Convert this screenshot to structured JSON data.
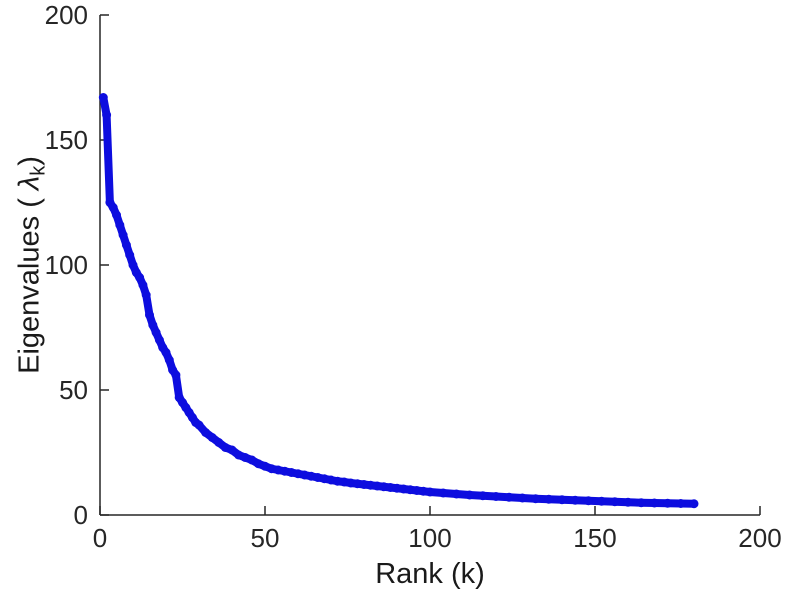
{
  "chart_data": {
    "type": "scatter",
    "title": "",
    "xlabel": "Rank (k)",
    "ylabel_parts": {
      "prefix": "Eigenvalues ( ",
      "lambda": "λ",
      "subscript": "k",
      "suffix": ")"
    },
    "xlim": [
      0,
      200
    ],
    "ylim": [
      0,
      200
    ],
    "xticks": [
      0,
      50,
      100,
      150,
      200
    ],
    "yticks": [
      0,
      50,
      100,
      150,
      200
    ],
    "grid": false,
    "legend": "none",
    "marker": "filled-circle",
    "colors": {
      "series": "#0d0ddf",
      "axis": "#262626",
      "background": "#ffffff"
    },
    "series": [
      {
        "name": "eigenvalues",
        "x": [
          1,
          2,
          3,
          4,
          5,
          6,
          7,
          8,
          9,
          10,
          11,
          12,
          13,
          14,
          15,
          16,
          17,
          18,
          19,
          20,
          21,
          22,
          23,
          24,
          25,
          26,
          27,
          28,
          29,
          30,
          32,
          34,
          36,
          38,
          40,
          42,
          44,
          46,
          48,
          50,
          52,
          54,
          56,
          58,
          60,
          62,
          64,
          66,
          68,
          70,
          72,
          74,
          76,
          78,
          80,
          82,
          84,
          86,
          88,
          90,
          92,
          94,
          96,
          98,
          100,
          104,
          108,
          112,
          116,
          120,
          124,
          128,
          132,
          136,
          140,
          144,
          148,
          152,
          156,
          160,
          164,
          168,
          172,
          176,
          180
        ],
        "y": [
          167,
          160,
          125,
          123,
          120,
          116,
          112,
          108,
          104,
          100,
          97,
          95,
          92,
          88,
          80,
          76,
          73,
          70,
          67,
          65,
          62,
          58,
          56,
          47,
          45,
          43,
          41,
          39,
          37,
          36,
          33,
          31,
          29,
          27,
          26,
          24,
          23,
          22,
          20.5,
          19.5,
          18.5,
          18,
          17.5,
          17,
          16.5,
          16,
          15.5,
          15,
          14.5,
          14,
          13.5,
          13.2,
          12.8,
          12.5,
          12.2,
          11.9,
          11.6,
          11.3,
          11,
          10.7,
          10.4,
          10.1,
          9.8,
          9.5,
          9.2,
          8.8,
          8.4,
          8,
          7.7,
          7.4,
          7.1,
          6.8,
          6.5,
          6.3,
          6.1,
          5.9,
          5.7,
          5.5,
          5.3,
          5.1,
          4.9,
          4.8,
          4.7,
          4.6,
          4.5
        ]
      }
    ]
  }
}
